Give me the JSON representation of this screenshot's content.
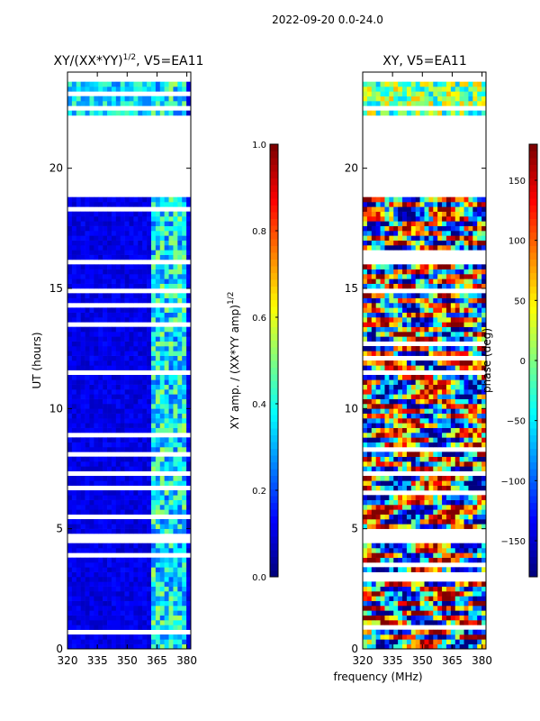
{
  "figure": {
    "suptitle": "2022-09-20 0.0-24.0",
    "xlabel": "frequency (MHz)"
  },
  "chart_data": [
    {
      "type": "heatmap",
      "title_prefix": "XY/(XX*YY)",
      "title_exponent": "1/2",
      "title_suffix": ", V5=EA11",
      "ylabel": "UT (hours)",
      "xlim": [
        320,
        382
      ],
      "ylim": [
        0,
        24
      ],
      "x_ticks": [
        320,
        335,
        350,
        365,
        380
      ],
      "y_ticks": [
        0,
        5,
        10,
        15,
        20
      ],
      "colorbar": {
        "label_prefix": "XY amp. / (XX*YY amp)",
        "label_exponent": "1/2",
        "range": [
          0.0,
          1.0
        ],
        "ticks": [
          "0.0",
          "0.2",
          "0.4",
          "0.6",
          "0.8",
          "1.0"
        ],
        "colormap": "jet"
      },
      "gaps_hours": [
        [
          18.8,
          22.1
        ],
        [
          0.35,
          0.45
        ],
        [
          4.5,
          4.75
        ],
        [
          7.2,
          7.35
        ],
        [
          11.4,
          11.6
        ],
        [
          16.0,
          16.2
        ]
      ]
    },
    {
      "type": "heatmap",
      "title": "XY, V5=EA11",
      "ylabel": "",
      "xlim": [
        320,
        382
      ],
      "ylim": [
        0,
        24
      ],
      "x_ticks": [
        320,
        335,
        350,
        365,
        380
      ],
      "y_ticks": [
        0,
        5,
        10,
        15,
        20
      ],
      "colorbar": {
        "label": "phase (deg)",
        "range": [
          -180,
          180
        ],
        "ticks": [
          "−150",
          "−100",
          "−50",
          "0",
          "50",
          "100",
          "150"
        ],
        "colormap": "jet"
      },
      "gaps_hours": [
        [
          18.8,
          22.1
        ],
        [
          0.35,
          0.45
        ],
        [
          4.5,
          4.75
        ],
        [
          7.2,
          7.35
        ],
        [
          11.4,
          11.6
        ],
        [
          16.0,
          16.2
        ]
      ]
    }
  ]
}
